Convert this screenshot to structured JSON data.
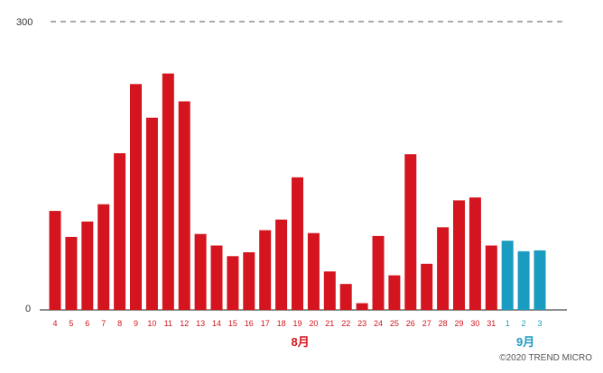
{
  "chart_data": {
    "type": "bar",
    "categories": [
      "4",
      "5",
      "6",
      "7",
      "8",
      "9",
      "10",
      "11",
      "12",
      "13",
      "14",
      "15",
      "16",
      "17",
      "18",
      "19",
      "20",
      "21",
      "22",
      "23",
      "24",
      "25",
      "26",
      "27",
      "28",
      "29",
      "30",
      "31",
      "1",
      "2",
      "3"
    ],
    "values": [
      103,
      76,
      92,
      110,
      163,
      235,
      200,
      246,
      217,
      79,
      67,
      56,
      60,
      83,
      94,
      138,
      80,
      40,
      27,
      7,
      77,
      36,
      162,
      48,
      86,
      114,
      117,
      67,
      72,
      61,
      62
    ],
    "months": [
      {
        "label": "8月",
        "color": "#d4141e"
      },
      {
        "label": "9月",
        "color": "#1a9bc0"
      }
    ],
    "bar_colors": {
      "august": "#d4141e",
      "september": "#1a9bc0"
    },
    "ylim": [
      0,
      300
    ],
    "ytick_labels": [
      "300",
      "0"
    ],
    "grid": "dashed line at 300",
    "title": "",
    "xlabel": "",
    "ylabel": ""
  },
  "credit": "©2020 TREND MICRO"
}
